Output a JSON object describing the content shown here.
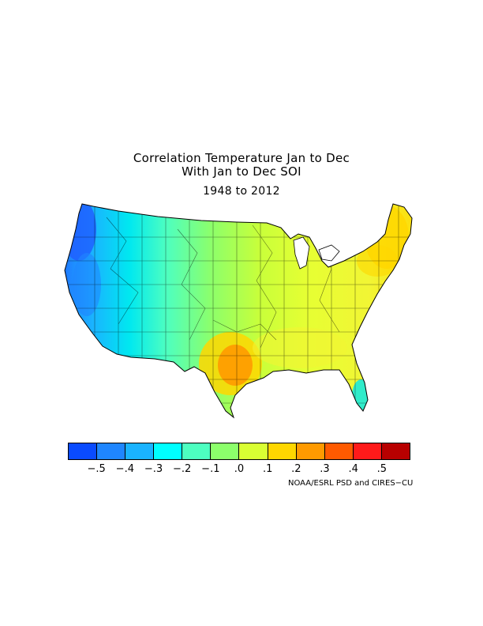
{
  "title": {
    "line1": "Correlation Temperature Jan to Dec",
    "line2": "With Jan to Dec SOI",
    "period": "1948 to 2012"
  },
  "map": {
    "region": "Contiguous United States climate divisions",
    "variable": "Correlation of temperature with SOI"
  },
  "legend": {
    "colors": [
      "#0a4bff",
      "#1f86ff",
      "#1ab3ff",
      "#00ffff",
      "#4dffc0",
      "#8cff6b",
      "#d9ff33",
      "#ffd700",
      "#ff9a00",
      "#ff5a00",
      "#ff1a1a",
      "#b80000"
    ],
    "labels": [
      "−.5",
      "−.4",
      "−.3",
      "−.2",
      "−.1",
      ".0",
      ".1",
      ".2",
      ".3",
      ".4",
      ".5"
    ]
  },
  "credit": "NOAA/ESRL PSD and CIRES−CU"
}
